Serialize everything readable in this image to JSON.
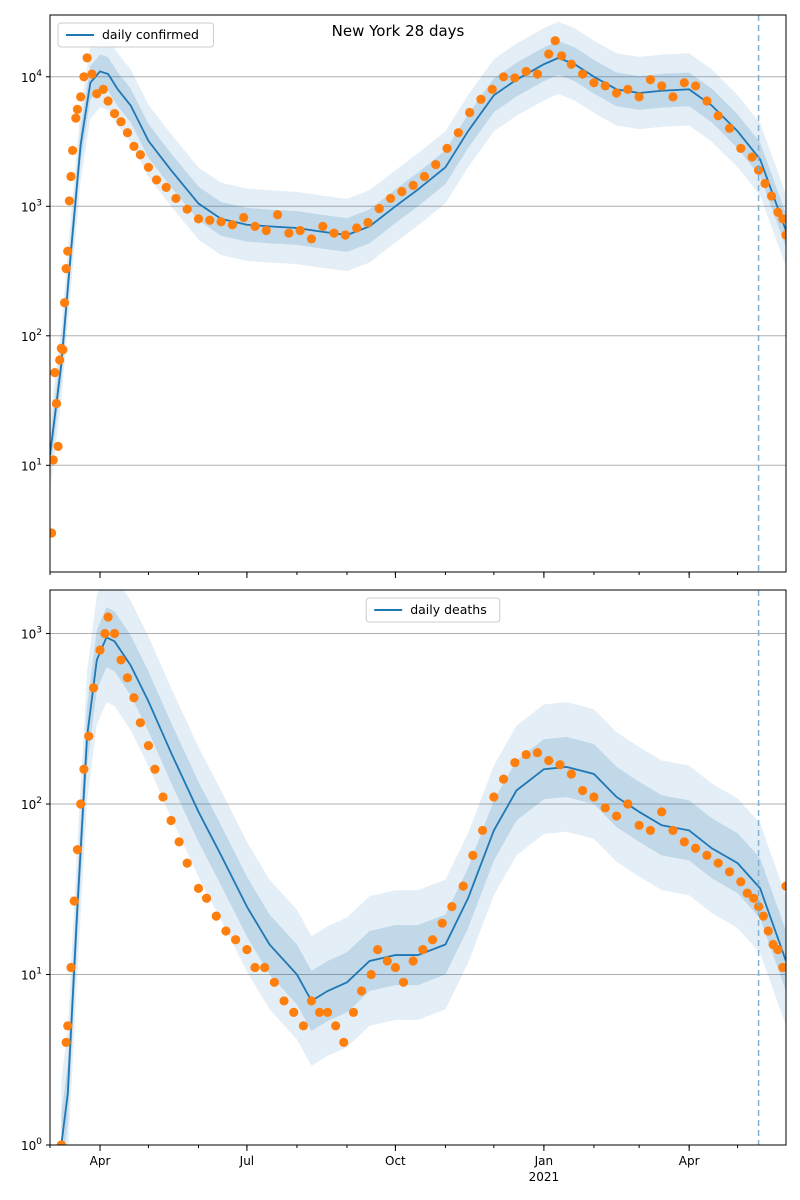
{
  "figure": {
    "title": "New York 28 days"
  },
  "style": {
    "line_color": "#1f77b4",
    "point_color": "#ff7f0e",
    "band_color": "#1f77b4",
    "grid_color": "#b0b0b0",
    "forecast_line_color": "#7fb0d6"
  },
  "chart_data": [
    {
      "type": "line",
      "title": "New York 28 days",
      "xaxis": {
        "type": "date",
        "range": [
          "2020-03-01",
          "2021-05-31"
        ],
        "major_ticks": [
          {
            "date": "2020-04-01",
            "label": "Apr"
          },
          {
            "date": "2020-07-01",
            "label": "Jul"
          },
          {
            "date": "2020-10-01",
            "label": "Oct"
          },
          {
            "date": "2021-01-01",
            "label": "Jan"
          },
          {
            "date": "2021-04-01",
            "label": "Apr"
          }
        ],
        "year_label": "",
        "show_tick_labels": false
      },
      "yaxis": {
        "scale": "log",
        "range": [
          1.5,
          30000
        ],
        "ticks": [
          {
            "value": 10,
            "label": "10^1",
            "base": "10",
            "exp": "1"
          },
          {
            "value": 100,
            "label": "10^2",
            "base": "10",
            "exp": "2"
          },
          {
            "value": 1000,
            "label": "10^3",
            "base": "10",
            "exp": "3"
          },
          {
            "value": 10000,
            "label": "10^4",
            "base": "10",
            "exp": "4"
          }
        ]
      },
      "grid": "horizontal",
      "legend": {
        "placement": "top-left",
        "entries": [
          "daily confirmed"
        ]
      },
      "forecast_start": "2021-05-14",
      "series": [
        {
          "name": "daily confirmed",
          "kind": "line",
          "x": [
            "2020-03-01",
            "2020-03-08",
            "2020-03-14",
            "2020-03-20",
            "2020-03-26",
            "2020-04-01",
            "2020-04-06",
            "2020-04-12",
            "2020-04-20",
            "2020-05-01",
            "2020-05-15",
            "2020-06-01",
            "2020-06-15",
            "2020-07-01",
            "2020-07-15",
            "2020-08-01",
            "2020-08-15",
            "2020-09-01",
            "2020-09-15",
            "2020-10-01",
            "2020-10-15",
            "2020-11-01",
            "2020-11-15",
            "2020-12-01",
            "2020-12-15",
            "2021-01-01",
            "2021-01-10",
            "2021-01-20",
            "2021-02-01",
            "2021-02-15",
            "2021-03-01",
            "2021-03-15",
            "2021-04-01",
            "2021-04-15",
            "2021-05-01",
            "2021-05-15",
            "2021-05-31"
          ],
          "y": [
            12,
            60,
            450,
            3000,
            9000,
            11000,
            10500,
            8000,
            6000,
            3200,
            1900,
            1050,
            800,
            720,
            700,
            680,
            640,
            600,
            700,
            1000,
            1350,
            2000,
            3800,
            7200,
            9500,
            12500,
            14000,
            12500,
            10000,
            8000,
            7500,
            7800,
            8000,
            6000,
            3800,
            2300,
            650
          ]
        },
        {
          "name": "uncertainty band (inner)",
          "kind": "band",
          "factor": 1.35
        },
        {
          "name": "uncertainty band (outer)",
          "kind": "band",
          "factor": 1.9
        },
        {
          "name": "observed",
          "kind": "scatter",
          "x": [
            "2020-03-02",
            "2020-03-03",
            "2020-03-04",
            "2020-03-05",
            "2020-03-06",
            "2020-03-07",
            "2020-03-08",
            "2020-03-09",
            "2020-03-10",
            "2020-03-11",
            "2020-03-12",
            "2020-03-13",
            "2020-03-14",
            "2020-03-15",
            "2020-03-17",
            "2020-03-18",
            "2020-03-20",
            "2020-03-22",
            "2020-03-24",
            "2020-03-27",
            "2020-03-30",
            "2020-04-03",
            "2020-04-06",
            "2020-04-10",
            "2020-04-14",
            "2020-04-18",
            "2020-04-22",
            "2020-04-26",
            "2020-05-01",
            "2020-05-06",
            "2020-05-12",
            "2020-05-18",
            "2020-05-25",
            "2020-06-01",
            "2020-06-08",
            "2020-06-15",
            "2020-06-22",
            "2020-06-29",
            "2020-07-06",
            "2020-07-13",
            "2020-07-20",
            "2020-07-27",
            "2020-08-03",
            "2020-08-10",
            "2020-08-17",
            "2020-08-24",
            "2020-08-31",
            "2020-09-07",
            "2020-09-14",
            "2020-09-21",
            "2020-09-28",
            "2020-10-05",
            "2020-10-12",
            "2020-10-19",
            "2020-10-26",
            "2020-11-02",
            "2020-11-09",
            "2020-11-16",
            "2020-11-23",
            "2020-11-30",
            "2020-12-07",
            "2020-12-14",
            "2020-12-21",
            "2020-12-28",
            "2021-01-04",
            "2021-01-08",
            "2021-01-12",
            "2021-01-18",
            "2021-01-25",
            "2021-02-01",
            "2021-02-08",
            "2021-02-15",
            "2021-02-22",
            "2021-03-01",
            "2021-03-08",
            "2021-03-15",
            "2021-03-22",
            "2021-03-29",
            "2021-04-05",
            "2021-04-12",
            "2021-04-19",
            "2021-04-26",
            "2021-05-03",
            "2021-05-10",
            "2021-05-14",
            "2021-05-18",
            "2021-05-22",
            "2021-05-26",
            "2021-05-29",
            "2021-05-31"
          ],
          "y": [
            3,
            11,
            52,
            30,
            14,
            65,
            80,
            78,
            180,
            330,
            450,
            1100,
            1700,
            2700,
            4800,
            5600,
            7000,
            10000,
            14000,
            10500,
            7400,
            8000,
            6500,
            5200,
            4500,
            3700,
            2900,
            2500,
            2000,
            1600,
            1400,
            1150,
            950,
            800,
            780,
            760,
            720,
            820,
            700,
            650,
            860,
            620,
            650,
            560,
            700,
            620,
            600,
            680,
            750,
            960,
            1150,
            1300,
            1450,
            1700,
            2100,
            2800,
            3700,
            5300,
            6700,
            8000,
            10000,
            9800,
            11000,
            10500,
            15000,
            19000,
            14500,
            12500,
            10500,
            9000,
            8500,
            7500,
            8000,
            7000,
            9500,
            8500,
            7000,
            9000,
            8500,
            6500,
            5000,
            4000,
            2800,
            2400,
            1900,
            1500,
            1200,
            900,
            800,
            600
          ]
        }
      ]
    },
    {
      "type": "line",
      "xaxis": {
        "type": "date",
        "range": [
          "2020-03-01",
          "2021-05-31"
        ],
        "major_ticks": [
          {
            "date": "2020-04-01",
            "label": "Apr"
          },
          {
            "date": "2020-07-01",
            "label": "Jul"
          },
          {
            "date": "2020-10-01",
            "label": "Oct"
          },
          {
            "date": "2021-01-01",
            "label": "Jan"
          },
          {
            "date": "2021-04-01",
            "label": "Apr"
          }
        ],
        "year_label": "2021",
        "show_tick_labels": true
      },
      "yaxis": {
        "scale": "log",
        "range": [
          1,
          1800
        ],
        "ticks": [
          {
            "value": 1,
            "label": "10^0",
            "base": "10",
            "exp": "0"
          },
          {
            "value": 10,
            "label": "10^1",
            "base": "10",
            "exp": "1"
          },
          {
            "value": 100,
            "label": "10^2",
            "base": "10",
            "exp": "2"
          },
          {
            "value": 1000,
            "label": "10^3",
            "base": "10",
            "exp": "3"
          }
        ]
      },
      "grid": "horizontal",
      "legend": {
        "placement": "top-center",
        "entries": [
          "daily deaths"
        ]
      },
      "forecast_start": "2021-05-14",
      "series": [
        {
          "name": "daily deaths",
          "kind": "line",
          "x": [
            "2020-03-08",
            "2020-03-12",
            "2020-03-18",
            "2020-03-24",
            "2020-03-30",
            "2020-04-05",
            "2020-04-10",
            "2020-04-20",
            "2020-05-01",
            "2020-05-15",
            "2020-06-01",
            "2020-06-15",
            "2020-07-01",
            "2020-07-15",
            "2020-08-01",
            "2020-08-10",
            "2020-08-20",
            "2020-09-01",
            "2020-09-15",
            "2020-10-01",
            "2020-10-15",
            "2020-11-01",
            "2020-11-15",
            "2020-12-01",
            "2020-12-15",
            "2021-01-01",
            "2021-01-15",
            "2021-02-01",
            "2021-02-15",
            "2021-03-01",
            "2021-03-15",
            "2021-04-01",
            "2021-04-15",
            "2021-05-01",
            "2021-05-15",
            "2021-05-31"
          ],
          "y": [
            1,
            2,
            25,
            250,
            700,
            950,
            900,
            650,
            400,
            200,
            90,
            50,
            25,
            15,
            10,
            7,
            8,
            9,
            12,
            13,
            13,
            15,
            28,
            70,
            120,
            160,
            165,
            150,
            110,
            90,
            75,
            70,
            55,
            45,
            32,
            12
          ]
        },
        {
          "name": "uncertainty band (inner)",
          "kind": "band",
          "factor": 1.5
        },
        {
          "name": "uncertainty band (outer)",
          "kind": "band",
          "factor": 2.4
        },
        {
          "name": "observed",
          "kind": "scatter",
          "x": [
            "2020-03-08",
            "2020-03-11",
            "2020-03-12",
            "2020-03-14",
            "2020-03-16",
            "2020-03-18",
            "2020-03-20",
            "2020-03-22",
            "2020-03-25",
            "2020-03-28",
            "2020-04-01",
            "2020-04-04",
            "2020-04-06",
            "2020-04-10",
            "2020-04-14",
            "2020-04-18",
            "2020-04-22",
            "2020-04-26",
            "2020-05-01",
            "2020-05-05",
            "2020-05-10",
            "2020-05-15",
            "2020-05-20",
            "2020-05-25",
            "2020-06-01",
            "2020-06-06",
            "2020-06-12",
            "2020-06-18",
            "2020-06-24",
            "2020-07-01",
            "2020-07-06",
            "2020-07-12",
            "2020-07-18",
            "2020-07-24",
            "2020-07-30",
            "2020-08-05",
            "2020-08-10",
            "2020-08-15",
            "2020-08-20",
            "2020-08-25",
            "2020-08-30",
            "2020-09-05",
            "2020-09-10",
            "2020-09-16",
            "2020-09-20",
            "2020-09-26",
            "2020-10-01",
            "2020-10-06",
            "2020-10-12",
            "2020-10-18",
            "2020-10-24",
            "2020-10-30",
            "2020-11-05",
            "2020-11-12",
            "2020-11-18",
            "2020-11-24",
            "2020-12-01",
            "2020-12-07",
            "2020-12-14",
            "2020-12-21",
            "2020-12-28",
            "2021-01-04",
            "2021-01-11",
            "2021-01-18",
            "2021-01-25",
            "2021-02-01",
            "2021-02-08",
            "2021-02-15",
            "2021-02-22",
            "2021-03-01",
            "2021-03-08",
            "2021-03-15",
            "2021-03-22",
            "2021-03-29",
            "2021-04-05",
            "2021-04-12",
            "2021-04-19",
            "2021-04-26",
            "2021-05-03",
            "2021-05-07",
            "2021-05-11",
            "2021-05-14",
            "2021-05-17",
            "2021-05-20",
            "2021-05-23",
            "2021-05-26",
            "2021-05-29",
            "2021-05-31"
          ],
          "y": [
            1,
            4,
            5,
            11,
            27,
            54,
            100,
            160,
            250,
            480,
            800,
            1000,
            1250,
            1000,
            700,
            550,
            420,
            300,
            220,
            160,
            110,
            80,
            60,
            45,
            32,
            28,
            22,
            18,
            16,
            14,
            11,
            11,
            9,
            7,
            6,
            5,
            7,
            6,
            6,
            5,
            4,
            6,
            8,
            10,
            14,
            12,
            11,
            9,
            12,
            14,
            16,
            20,
            25,
            33,
            50,
            70,
            110,
            140,
            175,
            195,
            200,
            180,
            170,
            150,
            120,
            110,
            95,
            85,
            100,
            75,
            70,
            90,
            70,
            60,
            55,
            50,
            45,
            40,
            35,
            30,
            28,
            25,
            22,
            18,
            15,
            14,
            11,
            33
          ]
        }
      ]
    }
  ]
}
